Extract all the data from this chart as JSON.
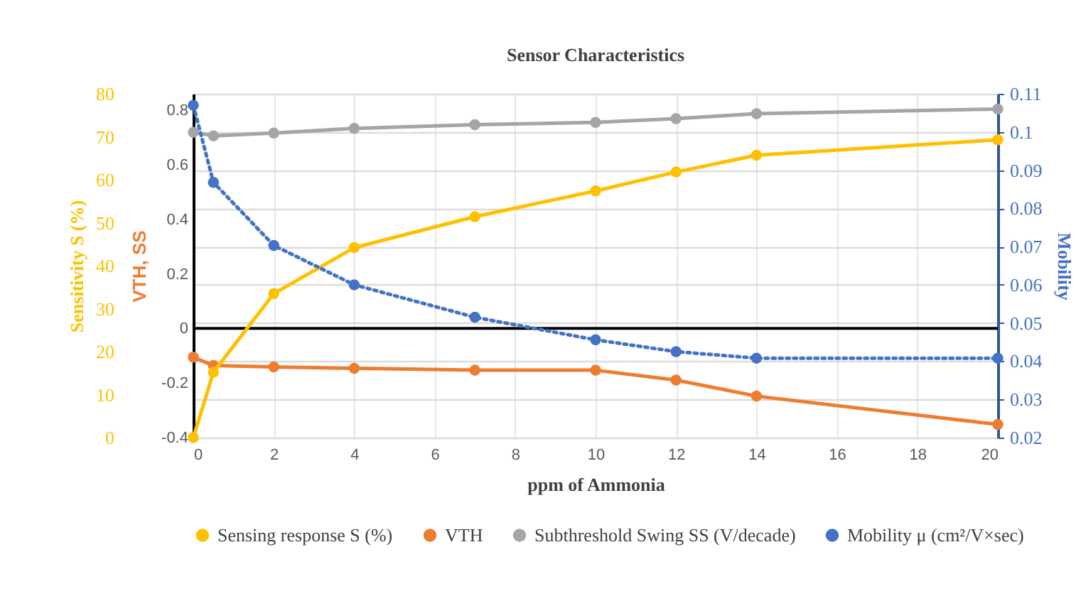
{
  "chart_data": {
    "type": "line",
    "title": "Sensor Characteristics",
    "xlabel": "ppm of Ammonia",
    "ylabel": "VTH, SS",
    "y2label": "Mobility",
    "y3label": "Sensitivity S (%)",
    "x": [
      0,
      0.5,
      2,
      4,
      7,
      10,
      12,
      14,
      20
    ],
    "xlim": [
      0,
      20
    ],
    "xticks": [
      0,
      2,
      4,
      6,
      8,
      10,
      12,
      14,
      16,
      18,
      20
    ],
    "ylim": [
      -0.4,
      0.86
    ],
    "yticks": [
      -0.4,
      -0.2,
      0,
      0.2,
      0.4,
      0.6,
      0.8
    ],
    "y2lim": [
      0.02,
      0.11
    ],
    "y2ticks": [
      0.02,
      0.03,
      0.04,
      0.05,
      0.06,
      0.07,
      0.08,
      0.09,
      0.1,
      0.11
    ],
    "y3lim": [
      0,
      80
    ],
    "y3ticks": [
      0,
      10,
      20,
      30,
      40,
      50,
      60,
      70,
      80
    ],
    "series": [
      {
        "name": "Sensing response S (%)",
        "color": "#ffc000",
        "axis": "y3",
        "values": [
          0,
          15.2,
          33.5,
          44.2,
          51.4,
          57.4,
          61.8,
          65.7,
          69.3
        ]
      },
      {
        "name": "VTH",
        "color": "#ed7d31",
        "values": [
          -0.105,
          -0.136,
          -0.141,
          -0.146,
          -0.153,
          -0.153,
          -0.189,
          -0.248,
          -0.352
        ]
      },
      {
        "name": "Subthreshold Swing SS (V/decade)",
        "color": "#a5a5a5",
        "values": [
          0.719,
          0.706,
          0.716,
          0.733,
          0.747,
          0.755,
          0.769,
          0.787,
          0.804
        ]
      },
      {
        "name": "Mobility μ (cm²/V×sec)",
        "color": "#4472c4",
        "axis": "y2",
        "line_style": "dotted",
        "values": [
          0.107,
          0.0868,
          0.0703,
          0.06,
          0.0515,
          0.0456,
          0.0425,
          0.0408,
          0.0408
        ]
      }
    ],
    "ref_lines": [
      {
        "axis": "y",
        "value": 0,
        "color": "#000000"
      }
    ],
    "grid": true,
    "legend": "bottom",
    "marker": "circle"
  }
}
